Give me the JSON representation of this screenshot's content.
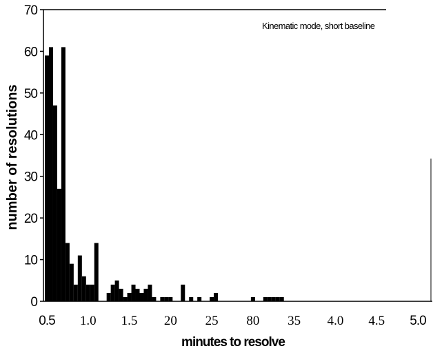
{
  "chart_data": {
    "type": "bar",
    "annotation": "Kinematic mode, short baseline",
    "xlabel": "minutes to resolve",
    "ylabel": "number of resolutions",
    "ylim": [
      0,
      70
    ],
    "xlim": [
      0.5,
      5.0
    ],
    "yticks": [
      "0",
      "10",
      "20",
      "30",
      "40",
      "50",
      "60",
      "70"
    ],
    "xticks": [
      "0.5",
      "1.0",
      "1.5",
      "20",
      "25",
      "80",
      "35",
      "4.0",
      "4.5",
      "5.0"
    ],
    "grid": false,
    "bar_color": "#000000",
    "x": [
      0.5,
      0.55,
      0.6,
      0.65,
      0.7,
      0.75,
      0.8,
      0.85,
      0.9,
      0.95,
      1.0,
      1.05,
      1.1,
      1.15,
      1.2,
      1.25,
      1.3,
      1.35,
      1.4,
      1.45,
      1.5,
      1.55,
      1.6,
      1.65,
      1.7,
      1.75,
      1.8,
      1.85,
      1.9,
      1.95,
      2.0,
      2.05,
      2.1,
      2.15,
      2.2,
      2.25,
      2.3,
      2.35,
      2.4,
      2.45,
      2.5,
      2.55,
      2.6,
      2.65,
      2.7,
      2.75,
      2.8,
      2.85,
      2.9,
      2.95,
      3.0,
      3.05,
      3.1,
      3.15,
      3.2,
      3.25,
      3.3,
      3.35,
      3.4,
      3.45,
      3.5,
      3.55,
      3.6,
      3.65,
      3.7,
      3.75,
      3.8,
      3.85,
      3.9,
      3.95,
      4.0,
      4.05,
      4.1,
      4.15,
      4.2,
      4.25,
      4.3,
      4.35,
      4.4,
      4.45,
      4.5,
      4.55,
      4.6,
      4.65,
      4.7,
      4.75,
      4.8,
      4.85,
      4.9,
      4.95,
      5.0
    ],
    "values": [
      59,
      61,
      47,
      27,
      61,
      14,
      9,
      4,
      11,
      6,
      4,
      4,
      14,
      0,
      0,
      2,
      4,
      5,
      3,
      1,
      2,
      4,
      3,
      2,
      3,
      4,
      1,
      0,
      1,
      1,
      1,
      0,
      0,
      4,
      0,
      1,
      0,
      1,
      0,
      0,
      1,
      2,
      0,
      0,
      0,
      0,
      0,
      0,
      0,
      0,
      1,
      0,
      0,
      1,
      1,
      1,
      1,
      1,
      0,
      0,
      0,
      0,
      0,
      0,
      0,
      0,
      0,
      0,
      0,
      0,
      0,
      0,
      0,
      0,
      0,
      0,
      0,
      0,
      0,
      0,
      0,
      0,
      0,
      0,
      0,
      0,
      0,
      0,
      0,
      0,
      0
    ]
  }
}
